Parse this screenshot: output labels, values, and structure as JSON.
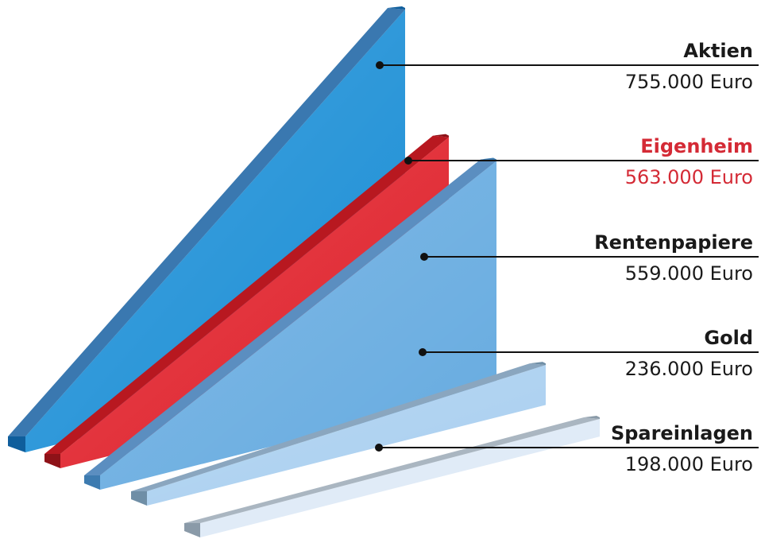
{
  "chart_data": {
    "type": "bar",
    "categories": [
      "Aktien",
      "Eigenheim",
      "Rentenpapiere",
      "Gold",
      "Spareinlagen"
    ],
    "values": [
      755000,
      563000,
      559000,
      236000,
      198000
    ],
    "value_labels": [
      "755.000 Euro",
      "563.000 Euro",
      "559.000 Euro",
      "236.000 Euro",
      "198.000 Euro"
    ],
    "unit": "Euro",
    "legend_position": "right",
    "grid": false,
    "colors": {
      "Aktien": {
        "face": "#1c8fd6",
        "side": "#0f5e9c",
        "top": "#3a78b0",
        "label": "#1a1a1a"
      },
      "Eigenheim": {
        "face": "#e0202a",
        "side": "#8e1218",
        "top": "#b81820",
        "label": "#d42a35"
      },
      "Rentenpapiere": {
        "face": "#66abe0",
        "side": "#3d7bb0",
        "top": "#5b8ec0",
        "label": "#1a1a1a"
      },
      "Gold": {
        "face": "#a9cff0",
        "side": "#6f8ea6",
        "top": "#8aa6bf",
        "label": "#1a1a1a"
      },
      "Spareinlagen": {
        "face": "#dde9f6",
        "side": "#8a9aa8",
        "top": "#aab6c1",
        "label": "#1a1a1a"
      }
    }
  }
}
